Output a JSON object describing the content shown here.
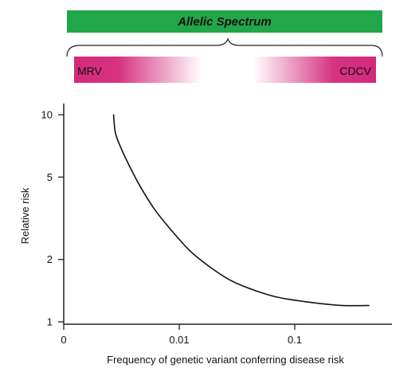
{
  "banner": {
    "title": "Allelic Spectrum",
    "color": "#22a64a",
    "left_label": "MRV",
    "right_label": "CDCV",
    "range_color": "#d4297a"
  },
  "chart_data": {
    "type": "line",
    "title": "",
    "xlabel": "Frequency of genetic variant conferring disease risk",
    "ylabel": "Relative risk",
    "x_scale": "log",
    "y_scale": "log",
    "xlim": [
      0.001,
      0.6
    ],
    "ylim": [
      1,
      12
    ],
    "x_ticks": [
      {
        "value": 0.001,
        "label": "0"
      },
      {
        "value": 0.01,
        "label": "0.01"
      },
      {
        "value": 0.1,
        "label": "0.1"
      }
    ],
    "y_ticks": [
      {
        "value": 1,
        "label": "1"
      },
      {
        "value": 2,
        "label": "2"
      },
      {
        "value": 5,
        "label": "5"
      },
      {
        "value": 10,
        "label": "10"
      }
    ],
    "grid": false,
    "legend": "none",
    "series": [
      {
        "color": "#111111",
        "points": [
          {
            "x": 0.0027,
            "y": 10
          },
          {
            "x": 0.0028,
            "y": 8.2
          },
          {
            "x": 0.0031,
            "y": 7.0
          },
          {
            "x": 0.0038,
            "y": 5.5
          },
          {
            "x": 0.0046,
            "y": 4.5
          },
          {
            "x": 0.0061,
            "y": 3.5
          },
          {
            "x": 0.0084,
            "y": 2.8
          },
          {
            "x": 0.0124,
            "y": 2.2
          },
          {
            "x": 0.0182,
            "y": 1.85
          },
          {
            "x": 0.027,
            "y": 1.6
          },
          {
            "x": 0.0403,
            "y": 1.45
          },
          {
            "x": 0.0686,
            "y": 1.32
          },
          {
            "x": 0.125,
            "y": 1.25
          },
          {
            "x": 0.252,
            "y": 1.2
          },
          {
            "x": 0.44,
            "y": 1.2
          }
        ]
      }
    ]
  }
}
